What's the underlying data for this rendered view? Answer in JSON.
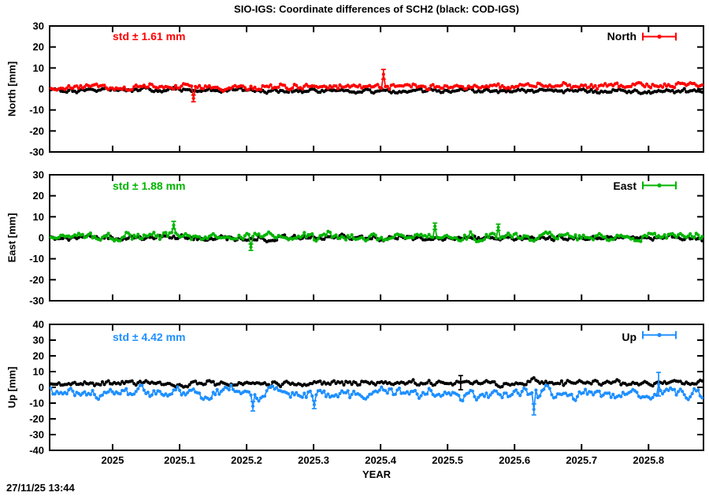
{
  "title": "SIO-IGS: Coordinate differences of SCH2 (black: COD-IGS)",
  "timestamp": "27/11/25 13:44",
  "chart_data": {
    "type": "scatter",
    "title": "SIO-IGS: Coordinate differences of SCH2 (black: COD-IGS)",
    "xlabel": "YEAR",
    "xrange": [
      2024.906,
      2025.882
    ],
    "x_ticks": [
      2025,
      2025.1,
      2025.2,
      2025.3,
      2025.4,
      2025.5,
      2025.6,
      2025.7,
      2025.8
    ],
    "x_tick_labels": [
      "2025",
      "2025.1",
      "2025.2",
      "2025.3",
      "2025.4",
      "2025.5",
      "2025.6",
      "2025.7",
      "2025.8"
    ],
    "grid": false,
    "legend_position": "top-right-inside",
    "panels": [
      {
        "name": "North",
        "ylabel": "North [mm]",
        "ylim": [
          -30,
          30
        ],
        "y_ticks": [
          30,
          20,
          10,
          0,
          -10,
          -20,
          -30
        ],
        "y_tick_labels": [
          "30",
          "20",
          "10",
          "0",
          "-10",
          "-20",
          "-30"
        ],
        "std_label": "std ± 1.61 mm",
        "std_value_mm": 1.61,
        "legend_label": "North",
        "color": "#ff0000",
        "series": [
          {
            "name": "COD-IGS",
            "color": "#000000",
            "mean_start": -0.3,
            "mean_end": -1.2,
            "sigma": 1.5,
            "smooth": 0.5,
            "n": 330,
            "seed": 101
          },
          {
            "name": "SIO-IGS",
            "color": "#ff0000",
            "mean_start": 0.5,
            "mean_end": 1.8,
            "sigma": 2.0,
            "smooth": 0.5,
            "n": 330,
            "seed": 202
          }
        ],
        "outliers": [
          {
            "series": 1,
            "x": 2025.405,
            "y": 7,
            "err": 2.3
          },
          {
            "series": 1,
            "x": 2025.12,
            "y": -4.5,
            "err": 1.6
          }
        ]
      },
      {
        "name": "East",
        "ylabel": "East [mm]",
        "ylim": [
          -30,
          30
        ],
        "y_ticks": [
          30,
          20,
          10,
          0,
          -10,
          -20,
          -30
        ],
        "y_tick_labels": [
          "30",
          "20",
          "10",
          "0",
          "-10",
          "-20",
          "-30"
        ],
        "std_label": "std ± 1.88 mm",
        "std_value_mm": 1.88,
        "legend_label": "East",
        "color": "#00b400",
        "series": [
          {
            "name": "COD-IGS",
            "color": "#000000",
            "mean_start": -0.2,
            "mean_end": -0.2,
            "sigma": 1.7,
            "smooth": 0.5,
            "n": 330,
            "seed": 303
          },
          {
            "name": "SIO-IGS",
            "color": "#00b400",
            "mean_start": 0.4,
            "mean_end": 0.4,
            "sigma": 2.7,
            "smooth": 0.5,
            "n": 330,
            "seed": 404
          }
        ],
        "outliers": [
          {
            "series": 1,
            "x": 2025.09,
            "y": 6,
            "err": 1.8
          },
          {
            "series": 1,
            "x": 2025.205,
            "y": -4.5,
            "err": 1.5
          },
          {
            "series": 1,
            "x": 2025.48,
            "y": 5.5,
            "err": 1.5
          },
          {
            "series": 1,
            "x": 2025.575,
            "y": 5,
            "err": 1.5
          }
        ]
      },
      {
        "name": "Up",
        "ylabel": "Up [mm]",
        "ylim": [
          -40,
          40
        ],
        "y_ticks": [
          40,
          30,
          20,
          10,
          0,
          -10,
          -20,
          -30,
          -40
        ],
        "y_tick_labels": [
          "40",
          "30",
          "20",
          "10",
          "0",
          "-10",
          "-20",
          "-30",
          "-40"
        ],
        "std_label": "std ± 4.42 mm",
        "std_value_mm": 4.42,
        "legend_label": "Up",
        "color": "#1e8fff",
        "series": [
          {
            "name": "COD-IGS",
            "color": "#000000",
            "mean_start": 2.3,
            "mean_end": 2.8,
            "sigma": 2.7,
            "smooth": 0.5,
            "n": 330,
            "seed": 505
          },
          {
            "name": "SIO-IGS",
            "color": "#1e8fff",
            "mean_start": -3.5,
            "mean_end": -3.8,
            "sigma": 5.0,
            "smooth": 0.55,
            "n": 330,
            "seed": 606
          }
        ],
        "outliers": [
          {
            "series": 0,
            "x": 2025.52,
            "y": 3,
            "err": 4.5
          },
          {
            "series": 1,
            "x": 2025.21,
            "y": -12,
            "err": 3.0
          },
          {
            "series": 1,
            "x": 2025.3,
            "y": -11,
            "err": 2.5
          },
          {
            "series": 1,
            "x": 2025.63,
            "y": -14,
            "err": 3.5
          },
          {
            "series": 1,
            "x": 2025.815,
            "y": 2,
            "err": 7.5
          }
        ]
      }
    ],
    "xlabel_text": "YEAR"
  },
  "xlabel": "YEAR"
}
